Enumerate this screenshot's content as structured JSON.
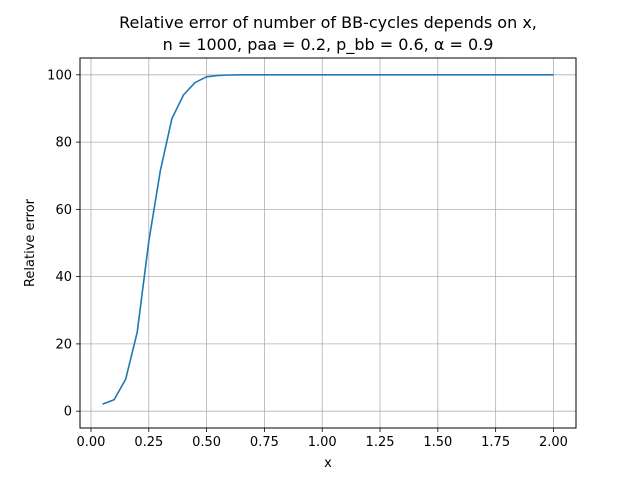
{
  "chart_data": {
    "type": "line",
    "title": "Relative error of number of BB-cycles depends on x,",
    "subtitle": "n = 1000, paa = 0.2, p_bb = 0.6, α = 0.9",
    "xlabel": "x",
    "ylabel": "Relative error",
    "xlim": [
      -0.0475,
      2.0975
    ],
    "ylim": [
      -5.0,
      105.0
    ],
    "xticks": [
      0.0,
      0.25,
      0.5,
      0.75,
      1.0,
      1.25,
      1.5,
      1.75,
      2.0
    ],
    "xtick_labels": [
      "0.00",
      "0.25",
      "0.50",
      "0.75",
      "1.00",
      "1.25",
      "1.50",
      "1.75",
      "2.00"
    ],
    "yticks": [
      0,
      20,
      40,
      60,
      80,
      100
    ],
    "ytick_labels": [
      "0",
      "20",
      "40",
      "60",
      "80",
      "100"
    ],
    "grid": true,
    "series": [
      {
        "color": "#1f77b4",
        "x": [
          0.05,
          0.1,
          0.15,
          0.2,
          0.25,
          0.3,
          0.35,
          0.4,
          0.45,
          0.5,
          0.55,
          0.6,
          0.65,
          0.7,
          0.75,
          0.8,
          0.85,
          0.9,
          0.95,
          1.0,
          1.05,
          1.1,
          1.15,
          1.2,
          1.25,
          1.3,
          1.35,
          1.4,
          1.45,
          1.5,
          1.55,
          1.6,
          1.65,
          1.7,
          1.75,
          1.8,
          1.85,
          1.9,
          1.95,
          2.0
        ],
        "y": [
          2.1,
          3.4,
          9.5,
          23.5,
          50.5,
          71.5,
          87.0,
          94.0,
          97.7,
          99.4,
          99.8,
          99.95,
          100,
          100,
          100,
          100,
          100,
          100,
          100,
          100,
          100,
          100,
          100,
          100,
          100,
          100,
          100,
          100,
          100,
          100,
          100,
          100,
          100,
          100,
          100,
          100,
          100,
          100,
          100,
          100
        ]
      }
    ]
  }
}
